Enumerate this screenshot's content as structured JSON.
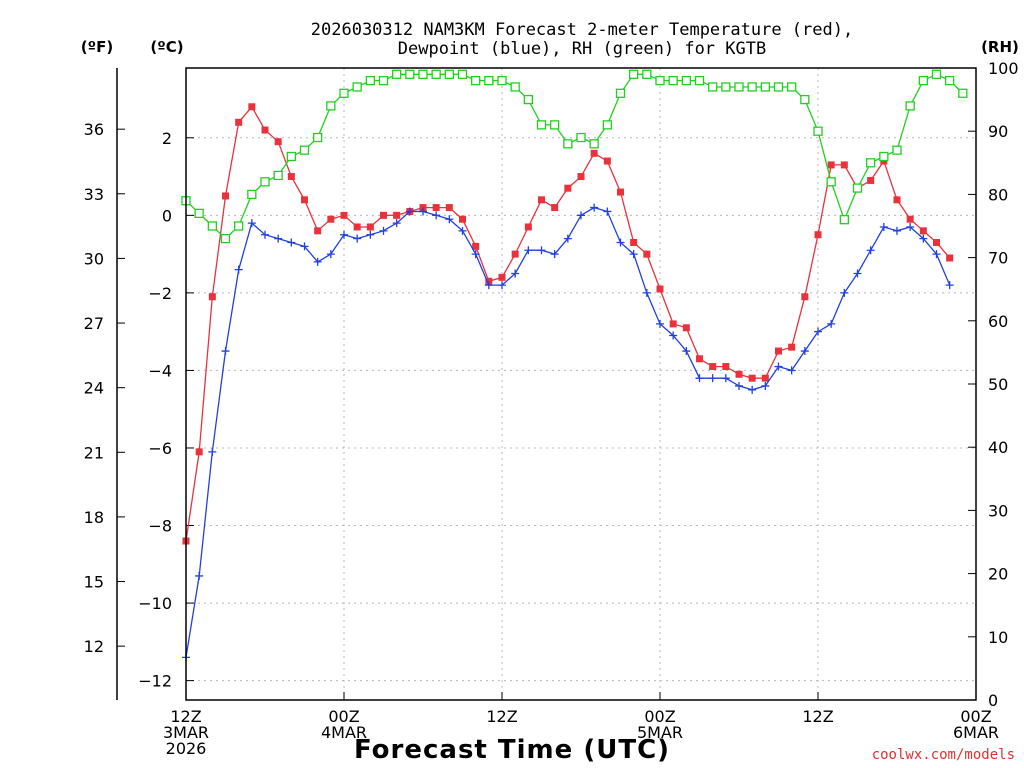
{
  "chart_data": {
    "type": "line",
    "title_line1": "2026030312 NAM3KM Forecast 2-meter Temperature (red),",
    "title_line2": "Dewpoint (blue), RH (green) for KGTB",
    "xlabel": "Forecast Time (UTC)",
    "credit": "coolwx.com/models",
    "x_hour_range": [
      0,
      60
    ],
    "x_ticks": [
      {
        "hour": 0,
        "lines": [
          "12Z",
          "3MAR",
          "2026"
        ]
      },
      {
        "hour": 12,
        "lines": [
          "00Z",
          "4MAR"
        ]
      },
      {
        "hour": 24,
        "lines": [
          "12Z"
        ]
      },
      {
        "hour": 36,
        "lines": [
          "00Z",
          "5MAR"
        ]
      },
      {
        "hour": 48,
        "lines": [
          "12Z"
        ]
      },
      {
        "hour": 60,
        "lines": [
          "00Z",
          "6MAR"
        ]
      }
    ],
    "celsius_axis": {
      "unit": "(ºC)",
      "range": [
        -12.5,
        3.8
      ],
      "ticks": [
        {
          "v": 2,
          "label": "2"
        },
        {
          "v": 0,
          "label": "0"
        },
        {
          "v": -2,
          "label": "−2"
        },
        {
          "v": -4,
          "label": "−4"
        },
        {
          "v": -6,
          "label": "−6"
        },
        {
          "v": -8,
          "label": "−8"
        },
        {
          "v": -10,
          "label": "−10"
        },
        {
          "v": -12,
          "label": "−12"
        }
      ]
    },
    "fahrenheit_axis": {
      "unit": "(ºF)",
      "ticks": [
        {
          "v": 36,
          "label": "36"
        },
        {
          "v": 33,
          "label": "33"
        },
        {
          "v": 30,
          "label": "30"
        },
        {
          "v": 27,
          "label": "27"
        },
        {
          "v": 24,
          "label": "24"
        },
        {
          "v": 21,
          "label": "21"
        },
        {
          "v": 18,
          "label": "18"
        },
        {
          "v": 15,
          "label": "15"
        },
        {
          "v": 12,
          "label": "12"
        }
      ]
    },
    "rh_axis": {
      "unit": "(RH)",
      "range": [
        0,
        100
      ],
      "ticks": [
        {
          "v": 0,
          "label": "0"
        },
        {
          "v": 10,
          "label": "10"
        },
        {
          "v": 20,
          "label": "20"
        },
        {
          "v": 30,
          "label": "30"
        },
        {
          "v": 40,
          "label": "40"
        },
        {
          "v": 50,
          "label": "50"
        },
        {
          "v": 60,
          "label": "60"
        },
        {
          "v": 70,
          "label": "70"
        },
        {
          "v": 80,
          "label": "80"
        },
        {
          "v": 90,
          "label": "90"
        },
        {
          "v": 100,
          "label": "100"
        }
      ]
    },
    "series": [
      {
        "name": "Temperature (ºC)",
        "color": "#e8323c",
        "marker": "filled-square",
        "axis": "celsius",
        "values": [
          [
            0,
            -8.4
          ],
          [
            1,
            -6.1
          ],
          [
            2,
            -2.1
          ],
          [
            3,
            0.5
          ],
          [
            4,
            2.4
          ],
          [
            5,
            2.8
          ],
          [
            6,
            2.2
          ],
          [
            7,
            1.9
          ],
          [
            8,
            1.0
          ],
          [
            9,
            0.4
          ],
          [
            10,
            -0.4
          ],
          [
            11,
            -0.1
          ],
          [
            12,
            0.0
          ],
          [
            13,
            -0.3
          ],
          [
            14,
            -0.3
          ],
          [
            15,
            0.0
          ],
          [
            16,
            0.0
          ],
          [
            17,
            0.1
          ],
          [
            18,
            0.2
          ],
          [
            19,
            0.2
          ],
          [
            20,
            0.2
          ],
          [
            21,
            -0.1
          ],
          [
            22,
            -0.8
          ],
          [
            23,
            -1.7
          ],
          [
            24,
            -1.6
          ],
          [
            25,
            -1.0
          ],
          [
            26,
            -0.3
          ],
          [
            27,
            0.4
          ],
          [
            28,
            0.2
          ],
          [
            29,
            0.7
          ],
          [
            30,
            1.0
          ],
          [
            31,
            1.6
          ],
          [
            32,
            1.4
          ],
          [
            33,
            0.6
          ],
          [
            34,
            -0.7
          ],
          [
            35,
            -1.0
          ],
          [
            36,
            -1.9
          ],
          [
            37,
            -2.8
          ],
          [
            38,
            -2.9
          ],
          [
            39,
            -3.7
          ],
          [
            40,
            -3.9
          ],
          [
            41,
            -3.9
          ],
          [
            42,
            -4.1
          ],
          [
            43,
            -4.2
          ],
          [
            44,
            -4.2
          ],
          [
            45,
            -3.5
          ],
          [
            46,
            -3.4
          ],
          [
            47,
            -2.1
          ],
          [
            48,
            -0.5
          ],
          [
            49,
            1.3
          ],
          [
            50,
            1.3
          ],
          [
            51,
            0.7
          ],
          [
            52,
            0.9
          ],
          [
            53,
            1.4
          ],
          [
            54,
            0.4
          ],
          [
            55,
            -0.1
          ],
          [
            56,
            -0.4
          ],
          [
            57,
            -0.7
          ],
          [
            58,
            -1.1
          ]
        ]
      },
      {
        "name": "Dewpoint (ºC)",
        "color": "#2040e0",
        "marker": "plus",
        "axis": "celsius",
        "values": [
          [
            0,
            -11.4
          ],
          [
            1,
            -9.3
          ],
          [
            2,
            -6.1
          ],
          [
            3,
            -3.5
          ],
          [
            4,
            -1.4
          ],
          [
            5,
            -0.2
          ],
          [
            6,
            -0.5
          ],
          [
            7,
            -0.6
          ],
          [
            8,
            -0.7
          ],
          [
            9,
            -0.8
          ],
          [
            10,
            -1.2
          ],
          [
            11,
            -1.0
          ],
          [
            12,
            -0.5
          ],
          [
            13,
            -0.6
          ],
          [
            14,
            -0.5
          ],
          [
            15,
            -0.4
          ],
          [
            16,
            -0.2
          ],
          [
            17,
            0.1
          ],
          [
            18,
            0.1
          ],
          [
            19,
            0.0
          ],
          [
            20,
            -0.1
          ],
          [
            21,
            -0.4
          ],
          [
            22,
            -1.0
          ],
          [
            23,
            -1.8
          ],
          [
            24,
            -1.8
          ],
          [
            25,
            -1.5
          ],
          [
            26,
            -0.9
          ],
          [
            27,
            -0.9
          ],
          [
            28,
            -1.0
          ],
          [
            29,
            -0.6
          ],
          [
            30,
            0.0
          ],
          [
            31,
            0.2
          ],
          [
            32,
            0.1
          ],
          [
            33,
            -0.7
          ],
          [
            34,
            -1.0
          ],
          [
            35,
            -2.0
          ],
          [
            36,
            -2.8
          ],
          [
            37,
            -3.1
          ],
          [
            38,
            -3.5
          ],
          [
            39,
            -4.2
          ],
          [
            40,
            -4.2
          ],
          [
            41,
            -4.2
          ],
          [
            42,
            -4.4
          ],
          [
            43,
            -4.5
          ],
          [
            44,
            -4.4
          ],
          [
            45,
            -3.9
          ],
          [
            46,
            -4.0
          ],
          [
            47,
            -3.5
          ],
          [
            48,
            -3.0
          ],
          [
            49,
            -2.8
          ],
          [
            50,
            -2.0
          ],
          [
            51,
            -1.5
          ],
          [
            52,
            -0.9
          ],
          [
            53,
            -0.3
          ],
          [
            54,
            -0.4
          ],
          [
            55,
            -0.3
          ],
          [
            56,
            -0.6
          ],
          [
            57,
            -1.0
          ],
          [
            58,
            -1.8
          ]
        ]
      },
      {
        "name": "RH (%)",
        "color": "#20d020",
        "marker": "open-square",
        "axis": "rh",
        "values": [
          [
            0,
            79
          ],
          [
            1,
            77
          ],
          [
            2,
            75
          ],
          [
            3,
            73
          ],
          [
            4,
            75
          ],
          [
            5,
            80
          ],
          [
            6,
            82
          ],
          [
            7,
            83
          ],
          [
            8,
            86
          ],
          [
            9,
            87
          ],
          [
            10,
            89
          ],
          [
            11,
            94
          ],
          [
            12,
            96
          ],
          [
            13,
            97
          ],
          [
            14,
            98
          ],
          [
            15,
            98
          ],
          [
            16,
            99
          ],
          [
            17,
            99
          ],
          [
            18,
            99
          ],
          [
            19,
            99
          ],
          [
            20,
            99
          ],
          [
            21,
            99
          ],
          [
            22,
            98
          ],
          [
            23,
            98
          ],
          [
            24,
            98
          ],
          [
            25,
            97
          ],
          [
            26,
            95
          ],
          [
            27,
            91
          ],
          [
            28,
            91
          ],
          [
            29,
            88
          ],
          [
            30,
            89
          ],
          [
            31,
            88
          ],
          [
            32,
            91
          ],
          [
            33,
            96
          ],
          [
            34,
            99
          ],
          [
            35,
            99
          ],
          [
            36,
            98
          ],
          [
            37,
            98
          ],
          [
            38,
            98
          ],
          [
            39,
            98
          ],
          [
            40,
            97
          ],
          [
            41,
            97
          ],
          [
            42,
            97
          ],
          [
            43,
            97
          ],
          [
            44,
            97
          ],
          [
            45,
            97
          ],
          [
            46,
            97
          ],
          [
            47,
            95
          ],
          [
            48,
            90
          ],
          [
            49,
            82
          ],
          [
            50,
            76
          ],
          [
            51,
            81
          ],
          [
            52,
            85
          ],
          [
            53,
            86
          ],
          [
            54,
            87
          ],
          [
            55,
            94
          ],
          [
            56,
            98
          ],
          [
            57,
            99
          ],
          [
            58,
            98
          ],
          [
            59,
            96
          ]
        ]
      }
    ]
  }
}
